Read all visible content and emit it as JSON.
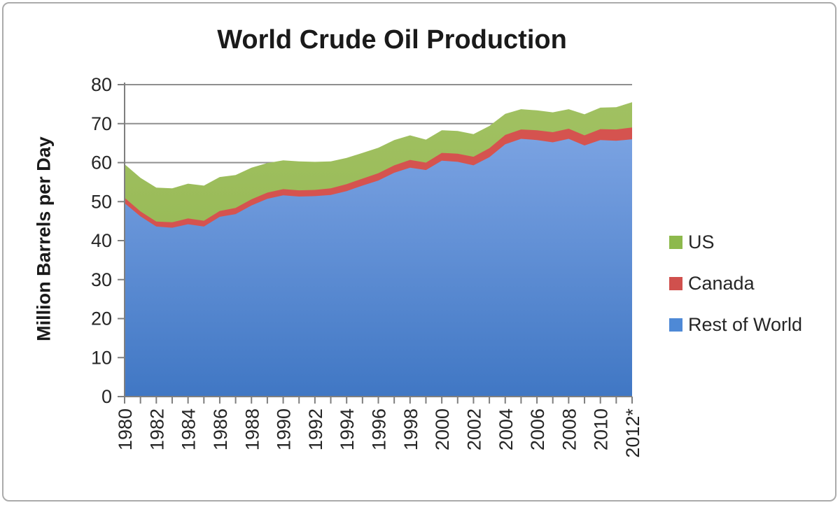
{
  "title": "World Crude Oil Production",
  "y_axis": {
    "label": "Million Barrels per Day"
  },
  "legend": {
    "items": [
      {
        "label": "US",
        "color": "#8db94c"
      },
      {
        "label": "Canada",
        "color": "#d0504d"
      },
      {
        "label": "Rest of World",
        "color": "#4e89d6"
      }
    ]
  },
  "chart_data": {
    "type": "area",
    "stacked": true,
    "title": "World Crude Oil Production",
    "xlabel": "",
    "ylabel": "Million Barrels per Day",
    "ylim": [
      0,
      80
    ],
    "y_ticks": [
      0,
      10,
      20,
      30,
      40,
      50,
      60,
      70,
      80
    ],
    "grid": "horizontal",
    "legend_position": "right",
    "x": [
      1980,
      1981,
      1982,
      1983,
      1984,
      1985,
      1986,
      1987,
      1988,
      1989,
      1990,
      1991,
      1992,
      1993,
      1994,
      1995,
      1996,
      1997,
      1998,
      1999,
      2000,
      2001,
      2002,
      2003,
      2004,
      2005,
      2006,
      2007,
      2008,
      2009,
      2010,
      2011,
      2012
    ],
    "x_tick_labels": [
      "1980",
      "1982",
      "1984",
      "1986",
      "1988",
      "1990",
      "1992",
      "1994",
      "1996",
      "1998",
      "2000",
      "2002",
      "2004",
      "2006",
      "2008",
      "2010",
      "2012*"
    ],
    "x_label_every": 2,
    "units": "Million Barrels per Day",
    "series": [
      {
        "name": "Rest of World",
        "color": "#4e89d6",
        "fill_top": "#86abe8",
        "fill_bottom": "#4077c4",
        "values": [
          49.6,
          46.2,
          43.6,
          43.3,
          44.2,
          43.6,
          46.1,
          46.8,
          49.0,
          50.7,
          51.6,
          51.3,
          51.4,
          51.7,
          52.7,
          54.1,
          55.4,
          57.4,
          58.7,
          58.1,
          60.5,
          60.2,
          59.3,
          61.4,
          64.7,
          66.1,
          65.8,
          65.2,
          66.1,
          64.4,
          65.8,
          65.6,
          66.0
        ]
      },
      {
        "name": "Canada",
        "color": "#d5534f",
        "fill_top": "#d5534f",
        "fill_bottom": "#d5534f",
        "values": [
          1.4,
          1.3,
          1.3,
          1.4,
          1.5,
          1.5,
          1.5,
          1.6,
          1.6,
          1.6,
          1.6,
          1.6,
          1.6,
          1.7,
          1.8,
          1.8,
          1.9,
          1.9,
          2.0,
          1.9,
          2.0,
          2.1,
          2.2,
          2.3,
          2.4,
          2.4,
          2.5,
          2.6,
          2.6,
          2.6,
          2.8,
          2.9,
          3.0
        ]
      },
      {
        "name": "US",
        "color": "#94b950",
        "fill_top": "#a2c263",
        "fill_bottom": "#8fb24b",
        "values": [
          8.6,
          8.6,
          8.7,
          8.7,
          8.9,
          9.0,
          8.7,
          8.4,
          8.1,
          7.6,
          7.4,
          7.4,
          7.2,
          6.9,
          6.7,
          6.6,
          6.5,
          6.5,
          6.3,
          5.9,
          5.8,
          5.8,
          5.8,
          5.7,
          5.4,
          5.2,
          5.1,
          5.1,
          5.0,
          5.4,
          5.5,
          5.7,
          6.5
        ]
      }
    ]
  }
}
